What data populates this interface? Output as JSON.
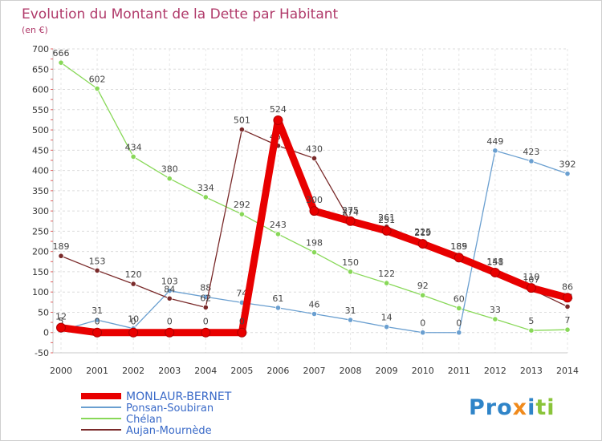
{
  "chart_data": {
    "type": "line",
    "title": "Evolution du Montant de la Dette par Habitant",
    "subtitle": "(en €)",
    "x": [
      2000,
      2001,
      2002,
      2003,
      2004,
      2005,
      2006,
      2007,
      2008,
      2009,
      2010,
      2011,
      2012,
      2013,
      2014
    ],
    "ylim": [
      -50,
      700
    ],
    "yticks": [
      -50,
      0,
      50,
      100,
      150,
      200,
      250,
      300,
      350,
      400,
      450,
      500,
      550,
      600,
      650,
      700
    ],
    "grid": true,
    "legend_placement": "bottom-left",
    "series": [
      {
        "name": "MONLAUR-BERNET",
        "color": "#e80000",
        "values": [
          12,
          0,
          0,
          0,
          0,
          0,
          524,
          300,
          275,
          251,
          219,
          185,
          148,
          110,
          86
        ]
      },
      {
        "name": "Ponsan-Soubiran",
        "color": "#6a9fd0",
        "values": [
          5,
          31,
          10,
          103,
          88,
          74,
          61,
          46,
          31,
          14,
          0,
          0,
          449,
          423,
          392
        ]
      },
      {
        "name": "Chélan",
        "color": "#88d858",
        "values": [
          666,
          602,
          434,
          380,
          334,
          292,
          243,
          198,
          150,
          122,
          92,
          60,
          33,
          5,
          7
        ]
      },
      {
        "name": "Aujan-Mournède",
        "color": "#7a2a2a",
        "values": [
          189,
          153,
          120,
          84,
          62,
          501,
          461,
          430,
          274,
          261,
          225,
          189,
          151,
          107,
          64
        ]
      }
    ]
  },
  "logo": {
    "text": "Proxiti"
  }
}
